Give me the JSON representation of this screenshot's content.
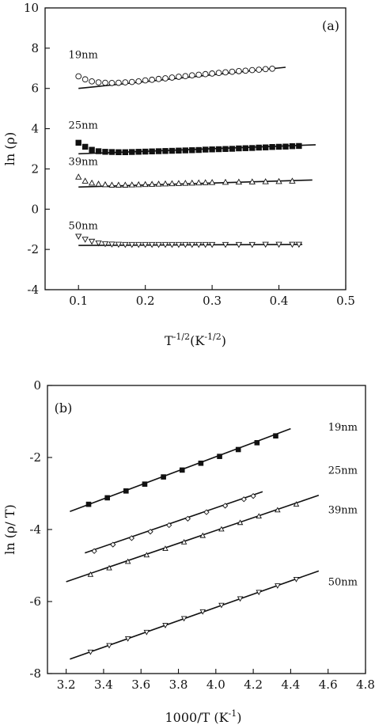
{
  "chart_data": [
    {
      "type": "scatter",
      "panel": "(a)",
      "title": "",
      "xlabel": "T",
      "xlabel_sup": "-1/2",
      "xlabel_unit": "(K",
      "xlabel_unit_sup": "-1/2",
      "xlabel_close": ")",
      "ylabel": "ln (ρ)",
      "xlim": [
        0.05,
        0.5
      ],
      "ylim": [
        -4,
        10
      ],
      "xticks": [
        0.1,
        0.2,
        0.3,
        0.4,
        0.5
      ],
      "xtick_labels": [
        "0.1",
        "0.2",
        "0.3",
        "0.4",
        "0.5"
      ],
      "yticks": [
        -4,
        -2,
        0,
        2,
        4,
        6,
        8,
        10
      ],
      "ytick_labels": [
        "-4",
        "-2",
        "0",
        "2",
        "4",
        "6",
        "8",
        "10"
      ],
      "grid": false,
      "series": [
        {
          "name": "19nm",
          "marker": "circle",
          "label_at": [
            0.085,
            7.5
          ],
          "fit": [
            [
              0.1,
              6.0
            ],
            [
              0.41,
              7.05
            ]
          ],
          "points": [
            [
              0.1,
              6.6
            ],
            [
              0.11,
              6.45
            ],
            [
              0.12,
              6.35
            ],
            [
              0.13,
              6.3
            ],
            [
              0.14,
              6.28
            ],
            [
              0.15,
              6.27
            ],
            [
              0.16,
              6.28
            ],
            [
              0.17,
              6.3
            ],
            [
              0.18,
              6.32
            ],
            [
              0.19,
              6.35
            ],
            [
              0.2,
              6.4
            ],
            [
              0.21,
              6.43
            ],
            [
              0.22,
              6.47
            ],
            [
              0.23,
              6.5
            ],
            [
              0.24,
              6.54
            ],
            [
              0.25,
              6.58
            ],
            [
              0.26,
              6.61
            ],
            [
              0.27,
              6.65
            ],
            [
              0.28,
              6.68
            ],
            [
              0.29,
              6.71
            ],
            [
              0.3,
              6.74
            ],
            [
              0.31,
              6.77
            ],
            [
              0.32,
              6.8
            ],
            [
              0.33,
              6.83
            ],
            [
              0.34,
              6.86
            ],
            [
              0.35,
              6.88
            ],
            [
              0.36,
              6.91
            ],
            [
              0.37,
              6.93
            ],
            [
              0.38,
              6.96
            ],
            [
              0.39,
              6.98
            ]
          ]
        },
        {
          "name": "25nm",
          "marker": "square-filled",
          "label_at": [
            0.085,
            4.0
          ],
          "fit": [
            [
              0.1,
              2.75
            ],
            [
              0.455,
              3.2
            ]
          ],
          "points": [
            [
              0.1,
              3.3
            ],
            [
              0.11,
              3.1
            ],
            [
              0.12,
              2.95
            ],
            [
              0.13,
              2.88
            ],
            [
              0.14,
              2.85
            ],
            [
              0.15,
              2.84
            ],
            [
              0.16,
              2.83
            ],
            [
              0.17,
              2.83
            ],
            [
              0.18,
              2.84
            ],
            [
              0.19,
              2.85
            ],
            [
              0.2,
              2.86
            ],
            [
              0.21,
              2.87
            ],
            [
              0.22,
              2.88
            ],
            [
              0.23,
              2.89
            ],
            [
              0.24,
              2.9
            ],
            [
              0.25,
              2.91
            ],
            [
              0.26,
              2.92
            ],
            [
              0.27,
              2.93
            ],
            [
              0.28,
              2.94
            ],
            [
              0.29,
              2.96
            ],
            [
              0.3,
              2.97
            ],
            [
              0.31,
              2.98
            ],
            [
              0.32,
              2.99
            ],
            [
              0.33,
              3.0
            ],
            [
              0.34,
              3.02
            ],
            [
              0.35,
              3.03
            ],
            [
              0.36,
              3.04
            ],
            [
              0.37,
              3.06
            ],
            [
              0.38,
              3.07
            ],
            [
              0.39,
              3.09
            ],
            [
              0.4,
              3.1
            ],
            [
              0.41,
              3.11
            ],
            [
              0.42,
              3.13
            ],
            [
              0.43,
              3.14
            ]
          ]
        },
        {
          "name": "39nm",
          "marker": "triangle-up",
          "label_at": [
            0.085,
            2.2
          ],
          "fit": [
            [
              0.1,
              1.1
            ],
            [
              0.45,
              1.45
            ]
          ],
          "points": [
            [
              0.1,
              1.6
            ],
            [
              0.11,
              1.4
            ],
            [
              0.12,
              1.3
            ],
            [
              0.13,
              1.25
            ],
            [
              0.14,
              1.22
            ],
            [
              0.15,
              1.2
            ],
            [
              0.16,
              1.2
            ],
            [
              0.17,
              1.2
            ],
            [
              0.18,
              1.21
            ],
            [
              0.19,
              1.22
            ],
            [
              0.2,
              1.23
            ],
            [
              0.21,
              1.24
            ],
            [
              0.22,
              1.25
            ],
            [
              0.23,
              1.26
            ],
            [
              0.24,
              1.27
            ],
            [
              0.25,
              1.28
            ],
            [
              0.26,
              1.29
            ],
            [
              0.27,
              1.3
            ],
            [
              0.28,
              1.31
            ],
            [
              0.29,
              1.32
            ],
            [
              0.3,
              1.33
            ],
            [
              0.32,
              1.34
            ],
            [
              0.34,
              1.35
            ],
            [
              0.36,
              1.36
            ],
            [
              0.38,
              1.37
            ],
            [
              0.4,
              1.38
            ],
            [
              0.42,
              1.4
            ]
          ]
        },
        {
          "name": "50nm",
          "marker": "triangle-down",
          "label_at": [
            0.085,
            -1.0
          ],
          "fit": [
            [
              0.1,
              -1.8
            ],
            [
              0.435,
              -1.75
            ]
          ],
          "points": [
            [
              0.1,
              -1.35
            ],
            [
              0.11,
              -1.5
            ],
            [
              0.12,
              -1.6
            ],
            [
              0.13,
              -1.68
            ],
            [
              0.14,
              -1.72
            ],
            [
              0.15,
              -1.74
            ],
            [
              0.16,
              -1.75
            ],
            [
              0.17,
              -1.76
            ],
            [
              0.18,
              -1.76
            ],
            [
              0.19,
              -1.76
            ],
            [
              0.2,
              -1.76
            ],
            [
              0.21,
              -1.76
            ],
            [
              0.22,
              -1.76
            ],
            [
              0.23,
              -1.76
            ],
            [
              0.24,
              -1.76
            ],
            [
              0.25,
              -1.76
            ],
            [
              0.26,
              -1.76
            ],
            [
              0.27,
              -1.76
            ],
            [
              0.28,
              -1.76
            ],
            [
              0.29,
              -1.76
            ],
            [
              0.3,
              -1.76
            ],
            [
              0.32,
              -1.76
            ],
            [
              0.34,
              -1.76
            ],
            [
              0.36,
              -1.76
            ],
            [
              0.38,
              -1.75
            ],
            [
              0.4,
              -1.75
            ],
            [
              0.42,
              -1.75
            ],
            [
              0.43,
              -1.75
            ]
          ]
        }
      ]
    },
    {
      "type": "scatter",
      "panel": "(b)",
      "title": "",
      "xlabel": "1000/T (K",
      "xlabel_sup": "-1",
      "xlabel_close": ")",
      "ylabel": "ln (ρ/ T)",
      "xlim": [
        3.1,
        4.8
      ],
      "ylim": [
        -8,
        0
      ],
      "xticks": [
        3.2,
        3.4,
        3.6,
        3.8,
        4.0,
        4.2,
        4.4,
        4.6,
        4.8
      ],
      "xtick_labels": [
        "3.2",
        "3.4",
        "3.6",
        "3.8",
        "4.0",
        "4.2",
        "4.4",
        "4.6",
        "4.8"
      ],
      "yticks": [
        -8,
        -6,
        -4,
        -2,
        0
      ],
      "ytick_labels": [
        "-8",
        "-6",
        "-4",
        "-2",
        "0"
      ],
      "grid": false,
      "series": [
        {
          "name": "19nm",
          "marker": "square-filled",
          "label_at": [
            4.6,
            -1.25
          ],
          "fit": [
            [
              3.22,
              -3.5
            ],
            [
              4.4,
              -1.2
            ]
          ],
          "points": [
            [
              3.32,
              -3.3
            ],
            [
              3.42,
              -3.12
            ],
            [
              3.52,
              -2.93
            ],
            [
              3.62,
              -2.74
            ],
            [
              3.72,
              -2.54
            ],
            [
              3.82,
              -2.35
            ],
            [
              3.92,
              -2.16
            ],
            [
              4.02,
              -1.97
            ],
            [
              4.12,
              -1.78
            ],
            [
              4.22,
              -1.59
            ],
            [
              4.32,
              -1.4
            ]
          ]
        },
        {
          "name": "25nm",
          "marker": "diamond",
          "label_at": [
            4.6,
            -2.45
          ],
          "fit": [
            [
              3.3,
              -4.65
            ],
            [
              4.25,
              -2.95
            ]
          ],
          "points": [
            [
              3.35,
              -4.6
            ],
            [
              3.45,
              -4.42
            ],
            [
              3.55,
              -4.24
            ],
            [
              3.65,
              -4.06
            ],
            [
              3.75,
              -3.88
            ],
            [
              3.85,
              -3.7
            ],
            [
              3.95,
              -3.52
            ],
            [
              4.05,
              -3.34
            ],
            [
              4.15,
              -3.16
            ],
            [
              4.2,
              -3.07
            ]
          ]
        },
        {
          "name": "39nm",
          "marker": "triangle-up",
          "label_at": [
            4.6,
            -3.55
          ],
          "fit": [
            [
              3.2,
              -5.45
            ],
            [
              4.55,
              -3.05
            ]
          ],
          "points": [
            [
              3.33,
              -5.25
            ],
            [
              3.43,
              -5.07
            ],
            [
              3.53,
              -4.89
            ],
            [
              3.63,
              -4.71
            ],
            [
              3.73,
              -4.53
            ],
            [
              3.83,
              -4.35
            ],
            [
              3.93,
              -4.17
            ],
            [
              4.03,
              -3.99
            ],
            [
              4.13,
              -3.81
            ],
            [
              4.23,
              -3.63
            ],
            [
              4.33,
              -3.46
            ],
            [
              4.43,
              -3.3
            ]
          ]
        },
        {
          "name": "50nm",
          "marker": "triangle-down",
          "label_at": [
            4.6,
            -5.55
          ],
          "fit": [
            [
              3.22,
              -7.6
            ],
            [
              4.55,
              -5.15
            ]
          ],
          "points": [
            [
              3.33,
              -7.4
            ],
            [
              3.43,
              -7.22
            ],
            [
              3.53,
              -7.03
            ],
            [
              3.63,
              -6.85
            ],
            [
              3.73,
              -6.66
            ],
            [
              3.83,
              -6.47
            ],
            [
              3.93,
              -6.28
            ],
            [
              4.03,
              -6.1
            ],
            [
              4.13,
              -5.92
            ],
            [
              4.23,
              -5.74
            ],
            [
              4.33,
              -5.56
            ],
            [
              4.43,
              -5.38
            ]
          ]
        }
      ]
    }
  ]
}
